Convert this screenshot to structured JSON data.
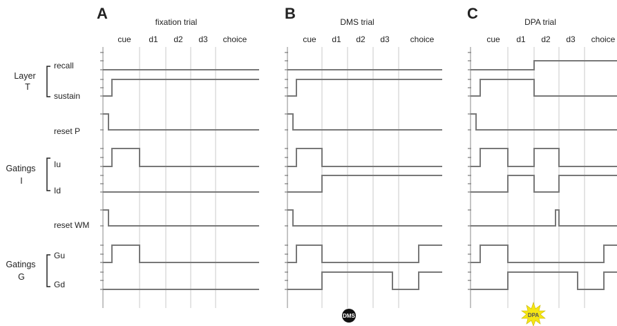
{
  "panels": [
    {
      "letter": "A",
      "title": "fixation trial",
      "phases": [
        "cue",
        "d1",
        "d2",
        "d3",
        "choice"
      ],
      "badge": null
    },
    {
      "letter": "B",
      "title": "DMS trial",
      "phases": [
        "cue",
        "d1",
        "d2",
        "d3",
        "choice"
      ],
      "badge": {
        "text": "DMS",
        "style": "black-circle",
        "color": "#111111"
      }
    },
    {
      "letter": "C",
      "title": "DPA trial",
      "phases": [
        "cue",
        "d1",
        "d2",
        "d3",
        "choice"
      ],
      "badge": {
        "text": "DPA",
        "style": "yellow-starburst",
        "color": "#f5e614"
      }
    }
  ],
  "groups": [
    {
      "label_lines": [
        "Layer",
        "T"
      ],
      "signals": [
        "recall",
        "sustain"
      ]
    },
    {
      "label_lines": [],
      "signals": [
        "reset P"
      ]
    },
    {
      "label_lines": [
        "Gatings",
        "I"
      ],
      "signals": [
        "Iu",
        "Id"
      ]
    },
    {
      "label_lines": [],
      "signals": [
        "reset WM"
      ]
    },
    {
      "label_lines": [
        "Gatings",
        "G"
      ],
      "signals": [
        "Gu",
        "Gd"
      ]
    }
  ],
  "signal_order": [
    "recall",
    "sustain",
    "reset P",
    "Iu",
    "Id",
    "reset WM",
    "Gu",
    "Gd"
  ],
  "phase_units": [
    "pre",
    "cue",
    "d1",
    "d2",
    "d3",
    "choice"
  ],
  "traces": {
    "A": {
      "recall": [
        [
          "pre",
          0
        ]
      ],
      "sustain": [
        [
          "pre",
          0
        ],
        [
          "cue",
          1
        ]
      ],
      "reset P": [
        [
          "pre",
          1
        ],
        [
          "pre_end",
          0
        ]
      ],
      "Iu": [
        [
          "pre",
          0
        ],
        [
          "cue",
          1
        ],
        [
          "d1",
          0
        ]
      ],
      "Id": [
        [
          "pre",
          0
        ]
      ],
      "reset WM": [
        [
          "pre",
          1
        ],
        [
          "pre_end",
          0
        ]
      ],
      "Gu": [
        [
          "pre",
          0
        ],
        [
          "cue",
          1
        ],
        [
          "d1",
          0
        ]
      ],
      "Gd": [
        [
          "pre",
          0
        ]
      ]
    },
    "B": {
      "recall": [
        [
          "pre",
          0
        ]
      ],
      "sustain": [
        [
          "pre",
          0
        ],
        [
          "cue",
          1
        ]
      ],
      "reset P": [
        [
          "pre",
          1
        ],
        [
          "pre_end",
          0
        ]
      ],
      "Iu": [
        [
          "pre",
          0
        ],
        [
          "cue",
          1
        ],
        [
          "d1",
          0
        ]
      ],
      "Id": [
        [
          "pre",
          0
        ],
        [
          "d1",
          1
        ]
      ],
      "reset WM": [
        [
          "pre",
          1
        ],
        [
          "pre_end",
          0
        ]
      ],
      "Gu": [
        [
          "pre",
          0
        ],
        [
          "cue",
          1
        ],
        [
          "d1",
          0
        ],
        [
          "choice",
          1
        ]
      ],
      "Gd": [
        [
          "pre",
          0
        ],
        [
          "d1",
          1
        ],
        [
          "d3_late",
          0
        ],
        [
          "choice",
          1
        ]
      ]
    },
    "C": {
      "recall": [
        [
          "pre",
          0
        ],
        [
          "d2",
          1
        ]
      ],
      "sustain": [
        [
          "pre",
          0
        ],
        [
          "cue",
          1
        ],
        [
          "d2",
          0
        ]
      ],
      "reset P": [
        [
          "pre",
          1
        ],
        [
          "pre_end",
          0
        ]
      ],
      "Iu": [
        [
          "pre",
          0
        ],
        [
          "cue",
          1
        ],
        [
          "d1",
          0
        ],
        [
          "d2",
          1
        ],
        [
          "d3",
          0
        ]
      ],
      "Id": [
        [
          "pre",
          0
        ],
        [
          "d1",
          1
        ],
        [
          "d2",
          0
        ],
        [
          "d3",
          1
        ]
      ],
      "reset WM": [
        [
          "pre",
          0
        ],
        [
          "d3_pulse",
          1
        ],
        [
          "d3_pulse_end",
          0
        ]
      ],
      "Gu": [
        [
          "pre",
          0
        ],
        [
          "cue",
          1
        ],
        [
          "d1",
          0
        ],
        [
          "choice",
          1
        ]
      ],
      "Gd": [
        [
          "pre",
          0
        ],
        [
          "d1",
          1
        ],
        [
          "d3_late",
          0
        ],
        [
          "choice",
          1
        ]
      ]
    }
  }
}
